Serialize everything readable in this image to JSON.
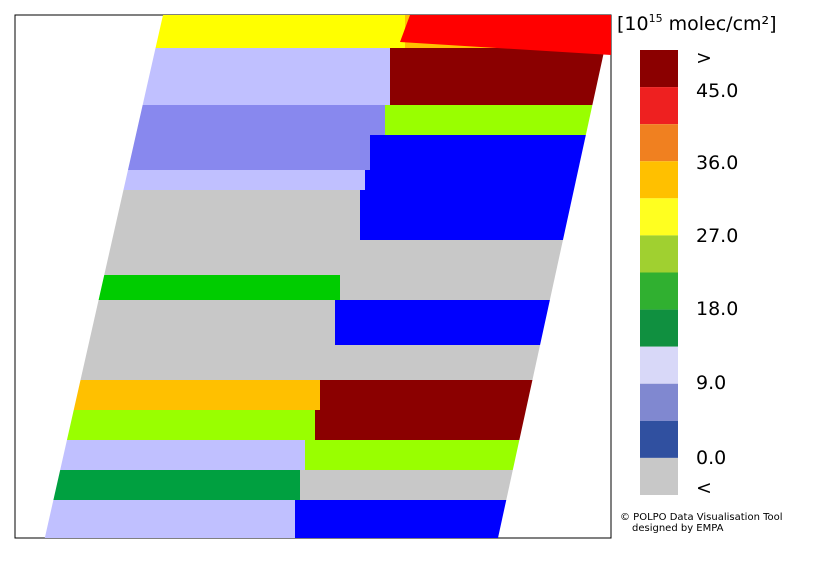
{
  "legend": {
    "title_parts": [
      "[10",
      "15",
      " molec/cm²]"
    ],
    "labels": [
      ">",
      "45.0",
      "36.0",
      "27.0",
      "18.0",
      "9.0",
      "0.0",
      "<"
    ]
  },
  "credit": [
    "© POLPO Data Visualisation Tool",
    "designed by EMPA"
  ]
}
